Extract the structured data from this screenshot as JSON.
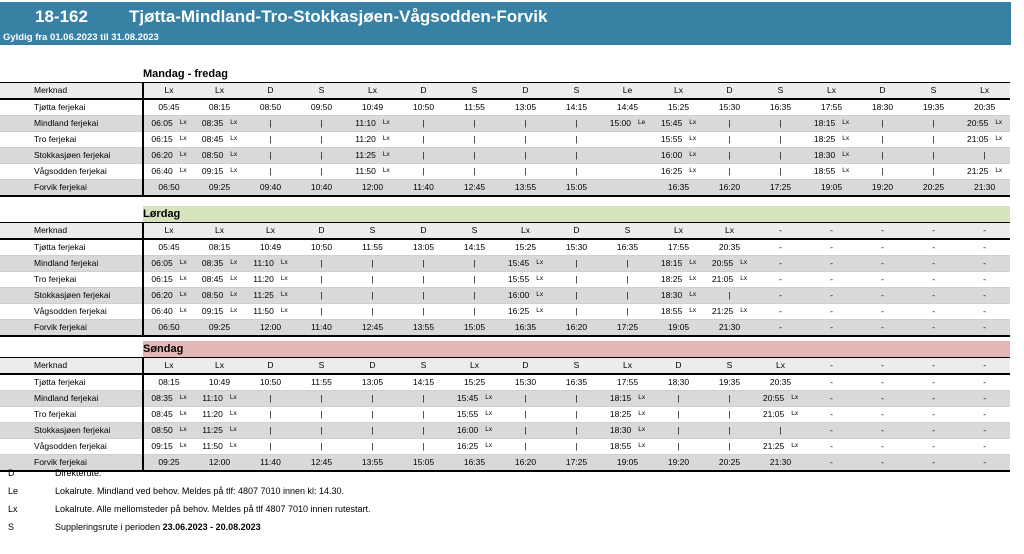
{
  "header": {
    "route_number": "18-162",
    "route_name": "Tjøtta-Mindland-Tro-Stokkasjøen-Vågsodden-Forvik",
    "validity": "Gyldig fra 01.06.2023 til 31.08.2023"
  },
  "colors": {
    "banner": "#3781a5",
    "header_row": "#ececec",
    "alt_row": "#d9d9d9",
    "weekday_band": "#ffffff",
    "saturday_band": "#d6e4bc",
    "sunday_band": "#e5b8b7"
  },
  "merknad_label": "Merknad",
  "stops": [
    "Tjøtta ferjekai",
    "Mindland ferjekai",
    "Tro ferjekai",
    "Stokkasjøen ferjekai",
    "Vågsodden ferjekai",
    "Forvik ferjekai"
  ],
  "sections": [
    {
      "id": "mandag-fredag",
      "title": "Mandag - fredag",
      "band_color": "#ffffff",
      "codes": [
        "Lx",
        "Lx",
        "D",
        "S",
        "Lx",
        "D",
        "S",
        "D",
        "S",
        "Le",
        "Lx",
        "D",
        "S",
        "Lx",
        "D",
        "S",
        "Lx"
      ],
      "rows": [
        [
          "05:45",
          "08:15",
          "08:50",
          "09:50",
          "10:49",
          "10:50",
          "11:55",
          "13:05",
          "14:15",
          "14:45",
          "15:25",
          "15:30",
          "16:35",
          "17:55",
          "18:30",
          "19:35",
          "20:35"
        ],
        [
          "06:05^Lx",
          "08:35^Lx",
          "|",
          "|",
          "11:10^Lx",
          "|",
          "|",
          "|",
          "|",
          "15:00^Le",
          "15:45^Lx",
          "|",
          "|",
          "18:15^Lx",
          "|",
          "|",
          "20:55^Lx"
        ],
        [
          "06:15^Lx",
          "08:45^Lx",
          "|",
          "|",
          "11:20^Lx",
          "|",
          "|",
          "|",
          "|",
          "",
          "15:55^Lx",
          "|",
          "|",
          "18:25^Lx",
          "|",
          "|",
          "21:05^Lx"
        ],
        [
          "06:20^Lx",
          "08:50^Lx",
          "|",
          "|",
          "11:25^Lx",
          "|",
          "|",
          "|",
          "|",
          "",
          "16:00^Lx",
          "|",
          "|",
          "18:30^Lx",
          "|",
          "|",
          "|"
        ],
        [
          "06:40^Lx",
          "09:15^Lx",
          "|",
          "|",
          "11:50^Lx",
          "|",
          "|",
          "|",
          "|",
          "",
          "16:25^Lx",
          "|",
          "|",
          "18:55^Lx",
          "|",
          "|",
          "21:25^Lx"
        ],
        [
          "06:50",
          "09:25",
          "09:40",
          "10:40",
          "12:00",
          "11:40",
          "12:45",
          "13:55",
          "15:05",
          "",
          "16:35",
          "16:20",
          "17:25",
          "19:05",
          "19:20",
          "20:25",
          "21:30"
        ]
      ]
    },
    {
      "id": "lordag",
      "title": "Lørdag",
      "band_color": "#d6e4bc",
      "codes": [
        "Lx",
        "Lx",
        "Lx",
        "D",
        "S",
        "D",
        "S",
        "Lx",
        "D",
        "S",
        "Lx",
        "Lx",
        "-",
        "-",
        "-",
        "-",
        "-"
      ],
      "rows": [
        [
          "05:45",
          "08:15",
          "10:49",
          "10:50",
          "11:55",
          "13:05",
          "14:15",
          "15:25",
          "15:30",
          "16:35",
          "17:55",
          "20:35",
          "-",
          "-",
          "-",
          "-",
          "-"
        ],
        [
          "06:05^Lx",
          "08:35^Lx",
          "11:10^Lx",
          "|",
          "|",
          "|",
          "|",
          "15:45^Lx",
          "|",
          "|",
          "18:15^Lx",
          "20:55^Lx",
          "-",
          "-",
          "-",
          "-",
          "-"
        ],
        [
          "06:15^Lx",
          "08:45^Lx",
          "11:20^Lx",
          "|",
          "|",
          "|",
          "|",
          "15:55^Lx",
          "|",
          "|",
          "18:25^Lx",
          "21:05^Lx",
          "-",
          "-",
          "-",
          "-",
          "-"
        ],
        [
          "06:20^Lx",
          "08:50^Lx",
          "11:25^Lx",
          "|",
          "|",
          "|",
          "|",
          "16:00^Lx",
          "|",
          "|",
          "18:30^Lx",
          "|",
          "-",
          "-",
          "-",
          "-",
          "-"
        ],
        [
          "06:40^Lx",
          "09:15^Lx",
          "11:50^Lx",
          "|",
          "|",
          "|",
          "|",
          "16:25^Lx",
          "|",
          "|",
          "18:55^Lx",
          "21:25^Lx",
          "-",
          "-",
          "-",
          "-",
          "-"
        ],
        [
          "06:50",
          "09:25",
          "12:00",
          "11:40",
          "12:45",
          "13:55",
          "15:05",
          "16:35",
          "16:20",
          "17:25",
          "19:05",
          "21:30",
          "-",
          "-",
          "-",
          "-",
          "-"
        ]
      ]
    },
    {
      "id": "sondag",
      "title": "Søndag",
      "band_color": "#e5b8b7",
      "codes": [
        "Lx",
        "Lx",
        "D",
        "S",
        "D",
        "S",
        "Lx",
        "D",
        "S",
        "Lx",
        "D",
        "S",
        "Lx",
        "-",
        "-",
        "-",
        "-"
      ],
      "rows": [
        [
          "08:15",
          "10:49",
          "10:50",
          "11:55",
          "13:05",
          "14:15",
          "15:25",
          "15:30",
          "16:35",
          "17:55",
          "18:30",
          "19:35",
          "20:35",
          "-",
          "-",
          "-",
          "-"
        ],
        [
          "08:35^Lx",
          "11:10^Lx",
          "|",
          "|",
          "|",
          "|",
          "15:45^Lx",
          "|",
          "|",
          "18:15^Lx",
          "|",
          "|",
          "20:55^Lx",
          "-",
          "-",
          "-",
          "-"
        ],
        [
          "08:45^Lx",
          "11:20^Lx",
          "|",
          "|",
          "|",
          "|",
          "15:55^Lx",
          "|",
          "|",
          "18:25^Lx",
          "|",
          "|",
          "21:05^Lx",
          "-",
          "-",
          "-",
          "-"
        ],
        [
          "08:50^Lx",
          "11:25^Lx",
          "|",
          "|",
          "|",
          "|",
          "16:00^Lx",
          "|",
          "|",
          "18:30^Lx",
          "|",
          "|",
          "|",
          "-",
          "-",
          "-",
          "-"
        ],
        [
          "09:15^Lx",
          "11:50^Lx",
          "|",
          "|",
          "|",
          "|",
          "16:25^Lx",
          "|",
          "|",
          "18:55^Lx",
          "|",
          "|",
          "21:25^Lx",
          "-",
          "-",
          "-",
          "-"
        ],
        [
          "09:25",
          "12:00",
          "11:40",
          "12:45",
          "13:55",
          "15:05",
          "16:35",
          "16:20",
          "17:25",
          "19:05",
          "19:20",
          "20:25",
          "21:30",
          "-",
          "-",
          "-",
          "-"
        ]
      ]
    }
  ],
  "footnotes": [
    {
      "code": "D",
      "parts": [
        {
          "text": "Direkterute."
        }
      ]
    },
    {
      "code": "Le",
      "parts": [
        {
          "text": "Lokalrute. Mindland ved behov. Meldes på tlf: 4807 7010 innen kl: 14.30."
        }
      ]
    },
    {
      "code": "Lx",
      "parts": [
        {
          "text": "Lokalrute. Alle mellomsteder på behov. Meldes på tlf 4807 7010 innen rutestart."
        }
      ]
    },
    {
      "code": "S",
      "parts": [
        {
          "text": "Suppleringsrute i perioden "
        },
        {
          "text": "23.06.2023 - 20.08.2023",
          "bold": true
        }
      ]
    }
  ]
}
